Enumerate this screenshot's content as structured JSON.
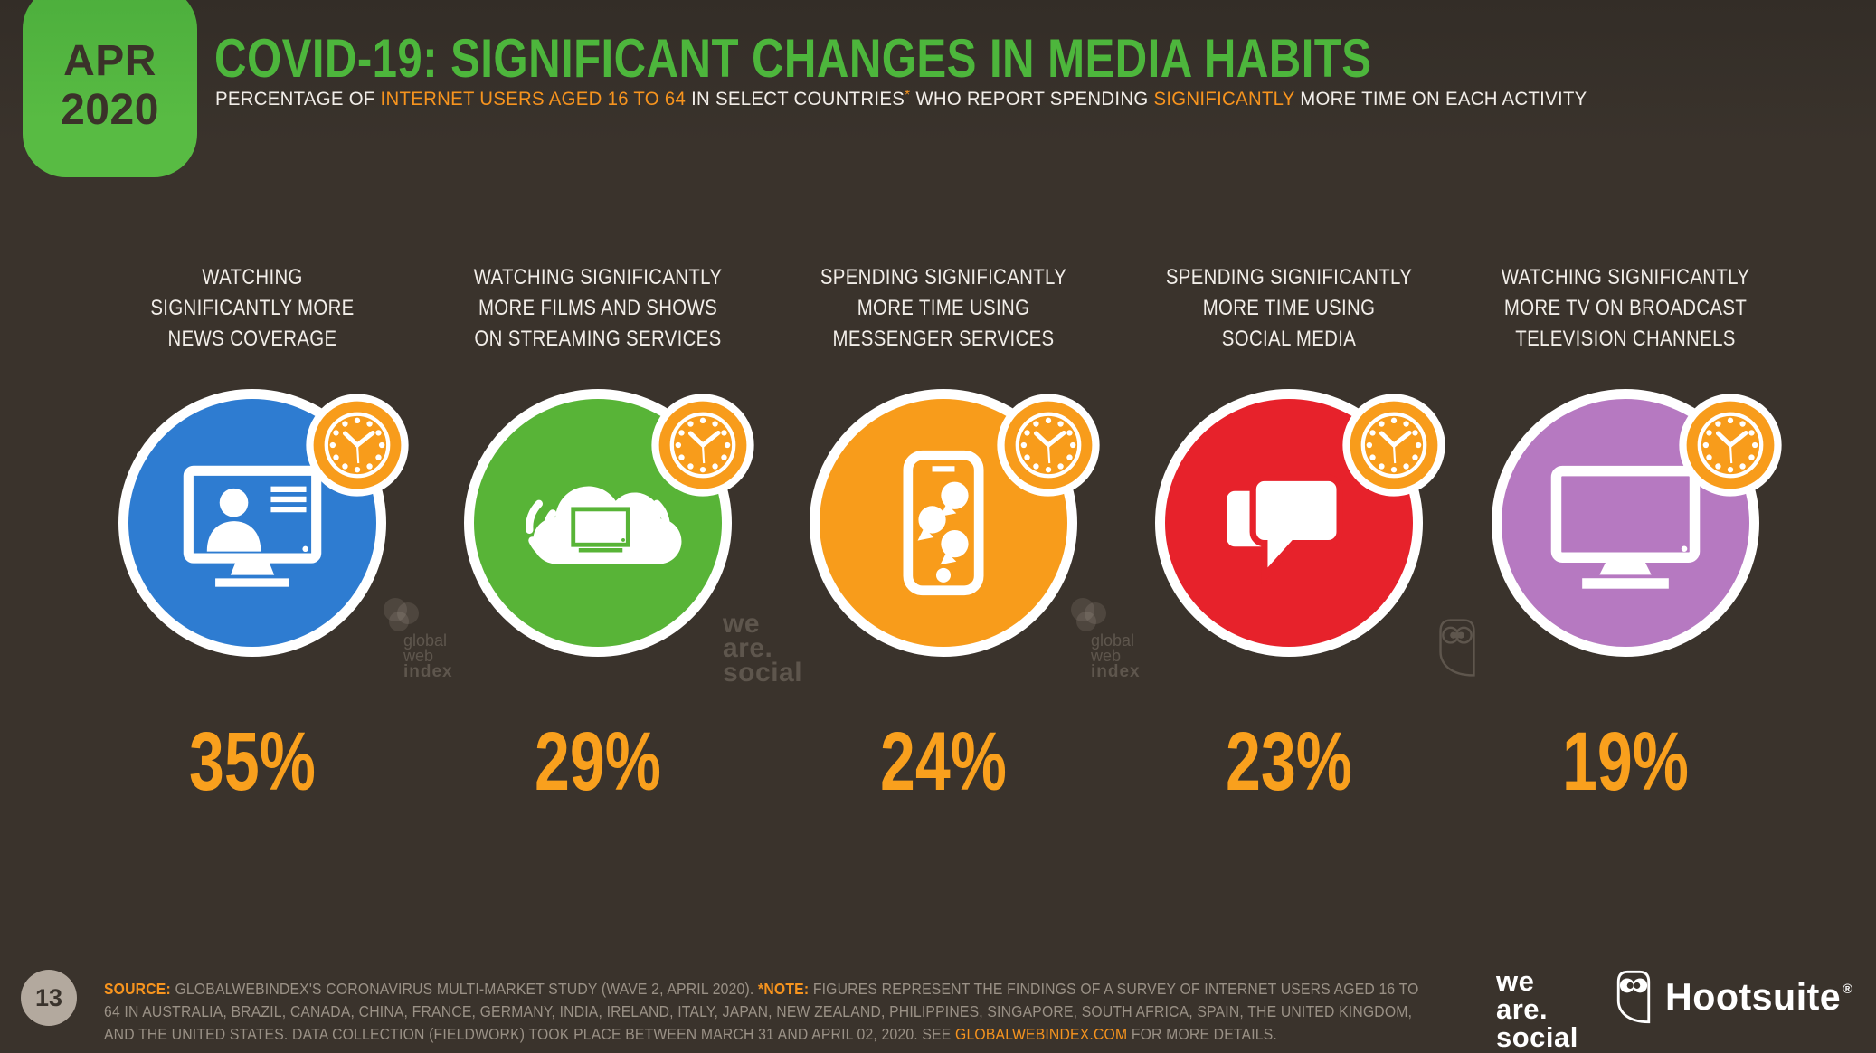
{
  "page": {
    "number": "13"
  },
  "colors": {
    "background": "#3a332c",
    "badge_green": "#58bb43",
    "title_green": "#4db63c",
    "accent_orange": "#f7941e",
    "value_orange": "#f9a01d",
    "clock_badge": "#f89c1b",
    "text_light": "#f2eee9",
    "footer_text": "#9a9186",
    "watermark": "#5e564d",
    "page_circle": "#b3a99e"
  },
  "header": {
    "badge": {
      "month": "APR",
      "year": "2020"
    },
    "title": "COVID-19: SIGNIFICANT CHANGES IN MEDIA HABITS",
    "subtitle_segments": [
      {
        "text": "PERCENTAGE OF ",
        "accent": false
      },
      {
        "text": "INTERNET USERS AGED 16 TO 64",
        "accent": true
      },
      {
        "text": " IN SELECT COUNTRIES",
        "accent": false
      },
      {
        "text": "*",
        "accent": true,
        "sup": true
      },
      {
        "text": " WHO REPORT SPENDING ",
        "accent": false
      },
      {
        "text": "SIGNIFICANTLY",
        "accent": true
      },
      {
        "text": " MORE TIME ON EACH ACTIVITY",
        "accent": false
      }
    ]
  },
  "columns": [
    {
      "lines": [
        "WATCHING",
        "SIGNIFICANTLY MORE",
        "NEWS COVERAGE"
      ],
      "value": "35%",
      "color": "#2e7cd1",
      "icon": "news-broadcast-icon"
    },
    {
      "lines": [
        "WATCHING SIGNIFICANTLY",
        "MORE FILMS AND SHOWS",
        "ON STREAMING SERVICES"
      ],
      "value": "29%",
      "color": "#58b437",
      "icon": "streaming-cloud-icon"
    },
    {
      "lines": [
        "SPENDING SIGNIFICANTLY",
        "MORE TIME USING",
        "MESSENGER SERVICES"
      ],
      "value": "24%",
      "color": "#f89c1b",
      "icon": "messenger-phone-icon"
    },
    {
      "lines": [
        "SPENDING SIGNIFICANTLY",
        "MORE TIME USING",
        "SOCIAL MEDIA"
      ],
      "value": "23%",
      "color": "#e7222b",
      "icon": "social-media-chat-icon"
    },
    {
      "lines": [
        "WATCHING SIGNIFICANTLY",
        "MORE TV ON BROADCAST",
        "TELEVISION CHANNELS"
      ],
      "value": "19%",
      "color": "#b679c1",
      "icon": "broadcast-tv-icon"
    }
  ],
  "watermarks": {
    "globalwebindex": [
      "global",
      "web",
      "index"
    ],
    "wearesocial": [
      "we",
      "are.",
      "social"
    ]
  },
  "footer": {
    "source_segments": [
      {
        "text": "SOURCE:",
        "accent": true,
        "bold": true
      },
      {
        "text": " GLOBALWEBINDEX'S CORONAVIRUS MULTI-MARKET STUDY (WAVE 2, APRIL 2020). ",
        "accent": false
      },
      {
        "text": "*NOTE:",
        "accent": true,
        "bold": true
      },
      {
        "text": " FIGURES REPRESENT THE FINDINGS OF A SURVEY OF INTERNET USERS AGED 16 TO 64 IN AUSTRALIA, BRAZIL, CANADA, CHINA, FRANCE, GERMANY, INDIA, IRELAND, ITALY, JAPAN, NEW ZEALAND, PHILIPPINES, SINGAPORE, SOUTH AFRICA, SPAIN, THE UNITED KINGDOM, AND THE UNITED STATES. DATA COLLECTION (FIELDWORK) TOOK PLACE BETWEEN MARCH 31 AND APRIL 02, 2020. SEE ",
        "accent": false
      },
      {
        "text": "GLOBALWEBINDEX.COM",
        "accent": true
      },
      {
        "text": " FOR MORE DETAILS.",
        "accent": false
      }
    ],
    "wearesocial": [
      "we",
      "are.",
      "social"
    ],
    "hootsuite": "Hootsuite",
    "registered": "®"
  },
  "chart_data": {
    "type": "bar",
    "variant": "icon-pictogram",
    "title": "COVID-19: SIGNIFICANT CHANGES IN MEDIA HABITS",
    "subtitle": "PERCENTAGE OF INTERNET USERS AGED 16 TO 64 IN SELECT COUNTRIES* WHO REPORT SPENDING SIGNIFICANTLY MORE TIME ON EACH ACTIVITY",
    "date_label": "APR 2020",
    "categories": [
      "WATCHING SIGNIFICANTLY MORE NEWS COVERAGE",
      "WATCHING SIGNIFICANTLY MORE FILMS AND SHOWS ON STREAMING SERVICES",
      "SPENDING SIGNIFICANTLY MORE TIME USING MESSENGER SERVICES",
      "SPENDING SIGNIFICANTLY MORE TIME USING SOCIAL MEDIA",
      "WATCHING SIGNIFICANTLY MORE TV ON BROADCAST TELEVISION CHANNELS"
    ],
    "values": [
      35,
      29,
      24,
      23,
      19
    ],
    "unit": "%",
    "category_colors": [
      "#2e7cd1",
      "#58b437",
      "#f89c1b",
      "#e7222b",
      "#b679c1"
    ],
    "legend_position": "none",
    "grid": false
  }
}
